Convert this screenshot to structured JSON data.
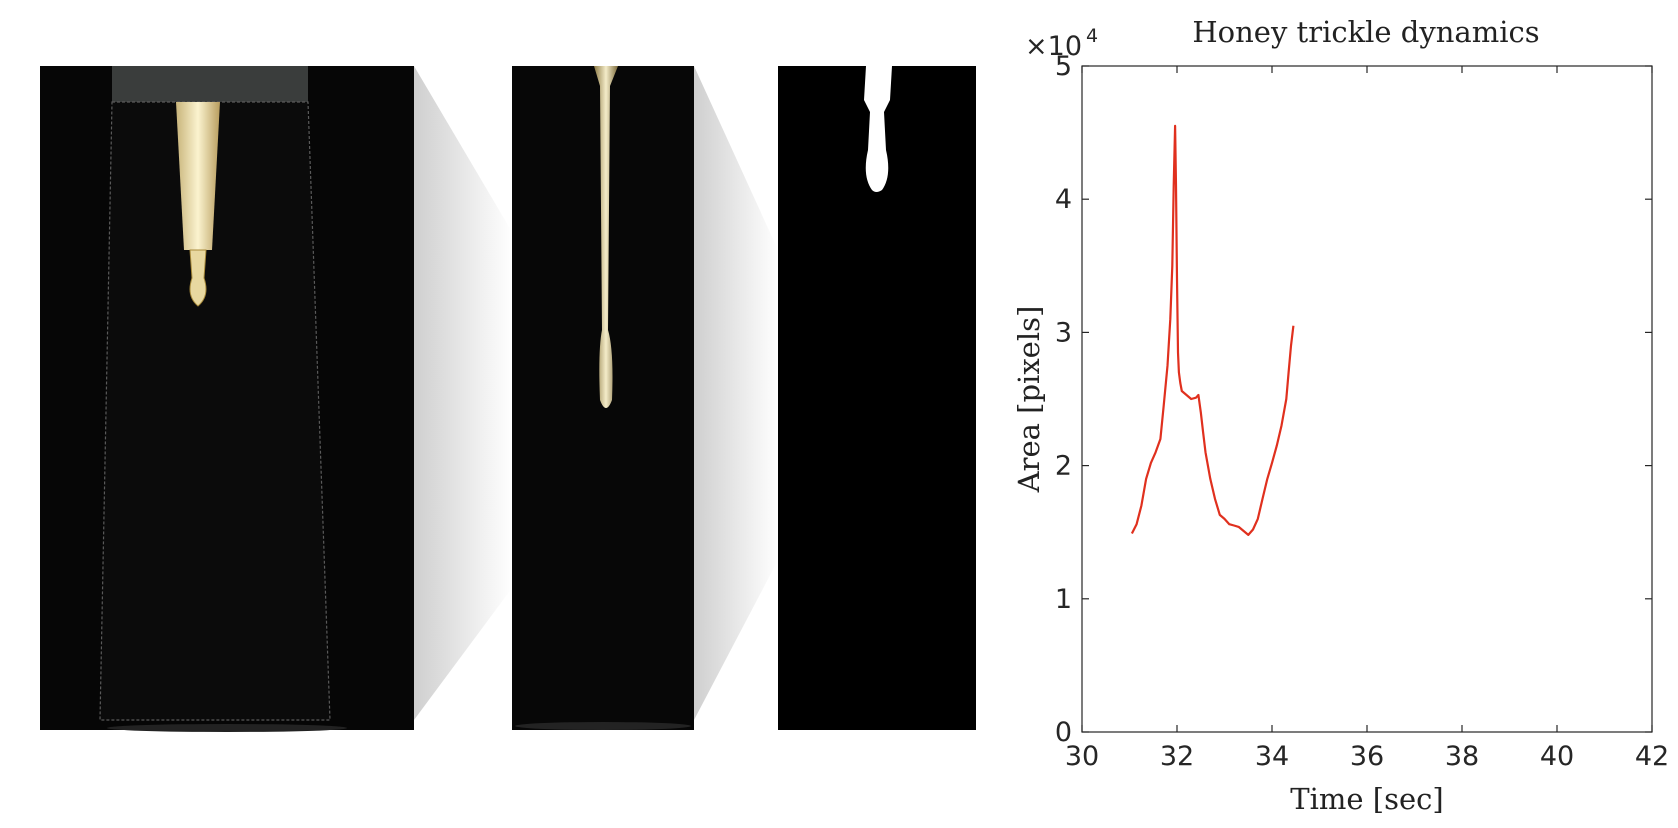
{
  "chart_data": {
    "type": "line",
    "title": "Honey trickle dynamics",
    "xlabel": "Time [sec]",
    "ylabel": "Area [pixels]",
    "xlim": [
      30,
      42
    ],
    "ylim": [
      0,
      50000
    ],
    "xticks": [
      30,
      32,
      34,
      36,
      38,
      40,
      42
    ],
    "yticks": [
      0,
      10000,
      20000,
      30000,
      40000,
      50000
    ],
    "ytick_labels": [
      "0",
      "1",
      "2",
      "3",
      "4",
      "5"
    ],
    "y_exponent": {
      "base": "×10",
      "power": "4"
    },
    "grid": false,
    "legend": "none",
    "series": [
      {
        "color": "#e0301e",
        "x": [
          31.05,
          31.15,
          31.25,
          31.35,
          31.45,
          31.55,
          31.65,
          31.72,
          31.8,
          31.86,
          31.9,
          31.93,
          31.96,
          31.98,
          32.0,
          32.02,
          32.04,
          32.07,
          32.1,
          32.2,
          32.3,
          32.4,
          32.45,
          32.5,
          32.55,
          32.6,
          32.7,
          32.8,
          32.9,
          33.0,
          33.1,
          33.2,
          33.3,
          33.4,
          33.5,
          33.6,
          33.7,
          33.8,
          33.9,
          34.0,
          34.1,
          34.2,
          34.3,
          34.35,
          34.4,
          34.45
        ],
        "y": [
          14900,
          15600,
          17000,
          19000,
          20200,
          21000,
          22000,
          24500,
          27500,
          31000,
          35000,
          41000,
          45500,
          41000,
          34000,
          28500,
          27000,
          26200,
          25600,
          25300,
          25000,
          25100,
          25300,
          24000,
          22500,
          21000,
          19000,
          17500,
          16300,
          16000,
          15600,
          15500,
          15400,
          15100,
          14800,
          15200,
          16000,
          17500,
          19000,
          20200,
          21500,
          23000,
          25000,
          27000,
          29000,
          30500
        ]
      }
    ]
  },
  "panels": [
    {
      "name": "photo-panel-1",
      "desc": "nozzle"
    },
    {
      "name": "photo-panel-2",
      "desc": "trickle"
    },
    {
      "name": "photo-panel-3",
      "desc": "binary-mask"
    }
  ]
}
